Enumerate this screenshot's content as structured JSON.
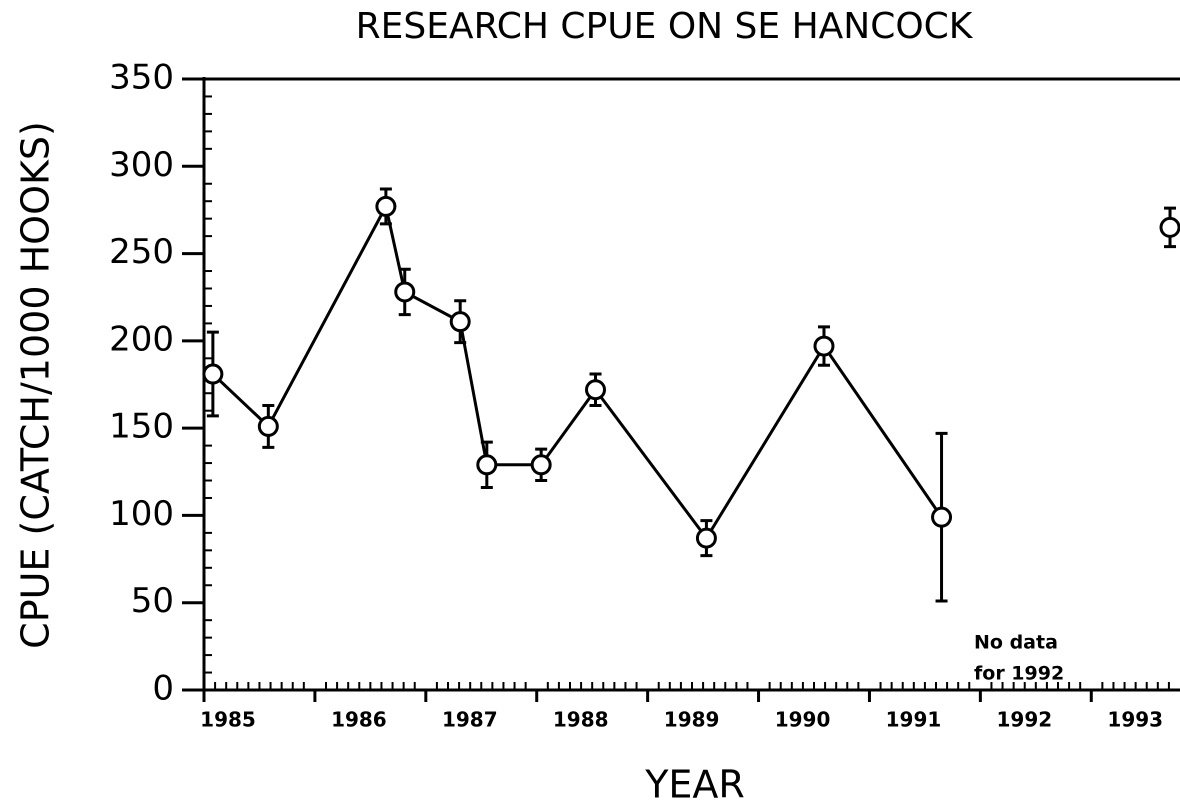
{
  "chart_data": {
    "type": "line",
    "title": "RESEARCH CPUE ON SE HANCOCK",
    "x_label": "YEAR",
    "y_label": "CPUE (CATCH/1000 HOOKS)",
    "annotation": [
      "No data",
      "for 1992"
    ],
    "x": [
      1985.08,
      1985.58,
      1986.64,
      1986.81,
      1987.31,
      1987.55,
      1988.04,
      1988.53,
      1989.53,
      1990.59,
      1991.65,
      null,
      1993.71
    ],
    "values": [
      181,
      151,
      277,
      228,
      211,
      129,
      129,
      172,
      87,
      197,
      99,
      null,
      265
    ],
    "errors": [
      24,
      12,
      10,
      13,
      12,
      13,
      9,
      9,
      10,
      11,
      48,
      null,
      11
    ],
    "color": "#000000",
    "xlim": [
      1985,
      1993.8
    ],
    "xticks": [
      {
        "value": 1985,
        "label": "1985"
      },
      {
        "value": 1986,
        "label": "1986"
      },
      {
        "value": 1987,
        "label": "1987"
      },
      {
        "value": 1988,
        "label": "1988"
      },
      {
        "value": 1989,
        "label": "1989"
      },
      {
        "value": 1990,
        "label": "1990"
      },
      {
        "value": 1991,
        "label": "1991"
      },
      {
        "value": 1992,
        "label": "1992"
      },
      {
        "value": 1993,
        "label": "1993"
      }
    ],
    "ylim": [
      0,
      350
    ],
    "yticks": [
      0,
      50,
      100,
      150,
      200,
      250,
      300,
      350
    ],
    "grid": false
  }
}
